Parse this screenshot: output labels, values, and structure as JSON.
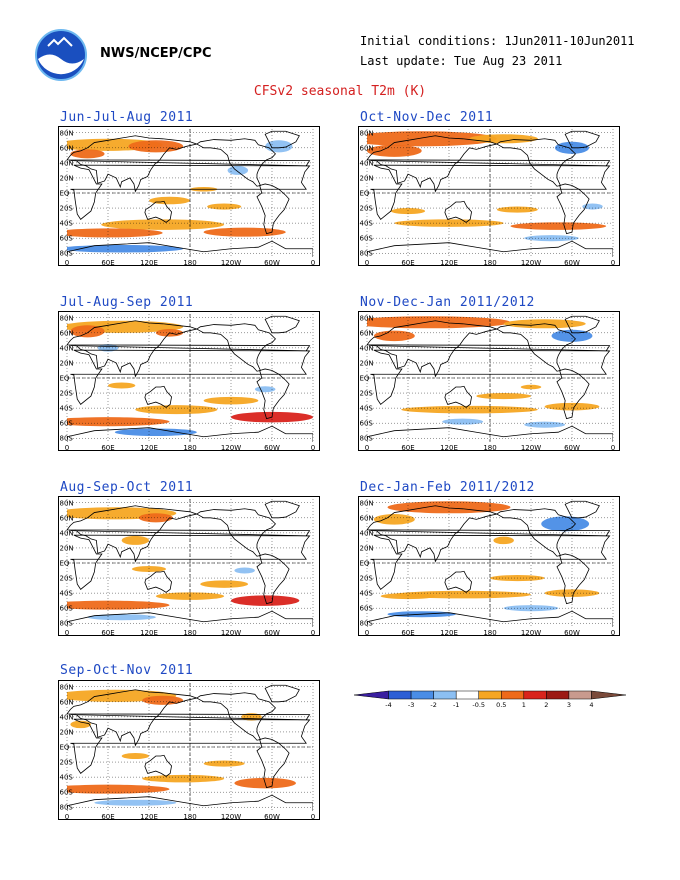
{
  "header": {
    "org": "NWS/NCEP/CPC",
    "initial_conditions": "Initial conditions: 1Jun2011-10Jun2011",
    "last_update": "Last update: Tue Aug 23 2011",
    "title": "CFSv2 seasonal T2m (K)"
  },
  "axes": {
    "lat_labels": [
      "80N",
      "60N",
      "40N",
      "20N",
      "EQ",
      "20S",
      "40S",
      "60S",
      "80S"
    ],
    "lon_labels": [
      "0",
      "60E",
      "120E",
      "180",
      "120W",
      "60W",
      "0"
    ]
  },
  "panels": [
    {
      "title": "Jun-Jul-Aug 2011"
    },
    {
      "title": "Oct-Nov-Dec 2011"
    },
    {
      "title": "Jul-Aug-Sep 2011"
    },
    {
      "title": "Nov-Dec-Jan 2011/2012"
    },
    {
      "title": "Aug-Sep-Oct 2011"
    },
    {
      "title": "Dec-Jan-Feb 2011/2012"
    },
    {
      "title": "Sep-Oct-Nov 2011"
    }
  ],
  "colorbar": {
    "labels": [
      "-4",
      "-3",
      "-2",
      "-1",
      "-0.5",
      "0.5",
      "1",
      "2",
      "3",
      "4"
    ],
    "colors": [
      "#3a1fa0",
      "#2d5ed6",
      "#4a8de6",
      "#8cbff2",
      "#ffffff",
      "#f5a623",
      "#ee6a1a",
      "#d9231c",
      "#9c1a14",
      "#c89a8e",
      "#7a4a3a"
    ]
  },
  "palette": {
    "warm1": "#f5a623",
    "warm2": "#ee6a1a",
    "warm3": "#d9231c",
    "cool1": "#8cbff2",
    "cool2": "#4a8de6",
    "title_blue": "#1f49c4",
    "title_red": "#d42020"
  }
}
